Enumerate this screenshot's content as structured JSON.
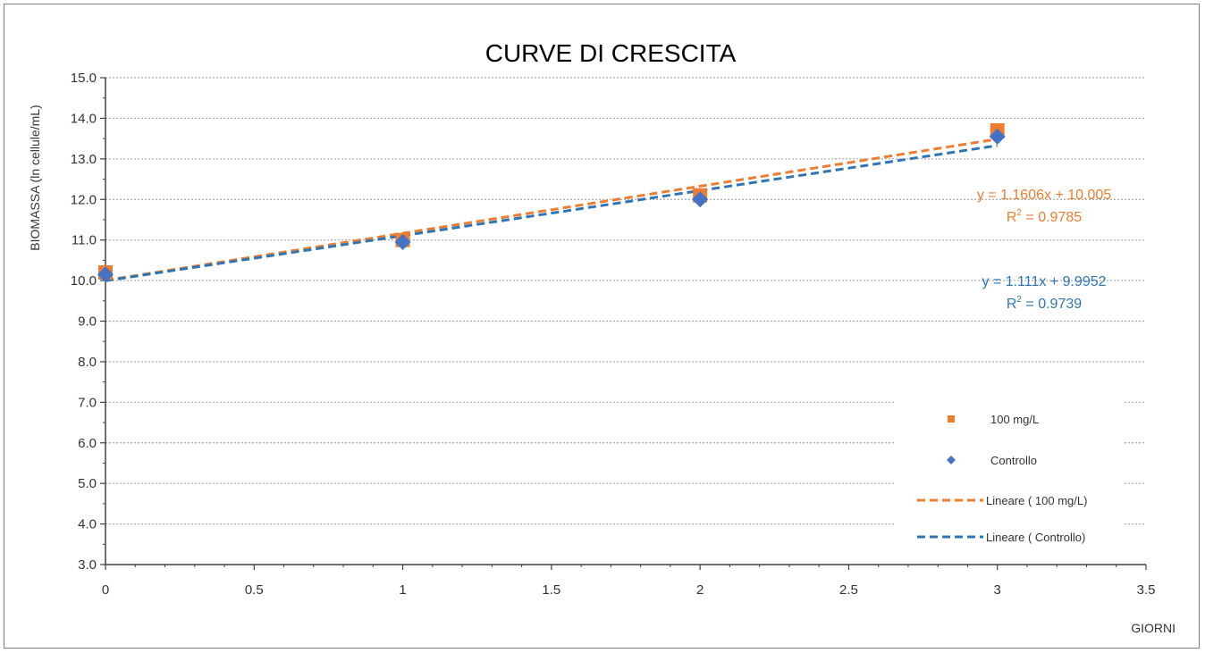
{
  "chart_data": {
    "type": "scatter",
    "title": "CURVE DI CRESCITA",
    "xlabel": "GIORNI",
    "ylabel": "BIOMASSA (ln  cellule/mL)",
    "xlim": [
      0,
      3.5
    ],
    "ylim": [
      3.0,
      15.0
    ],
    "x_ticks": [
      "0",
      "0.5",
      "1",
      "1.5",
      "2",
      "2.5",
      "3",
      "3.5"
    ],
    "x_tick_values": [
      0,
      0.5,
      1,
      1.5,
      2,
      2.5,
      3,
      3.5
    ],
    "y_ticks": [
      "3.0",
      "4.0",
      "5.0",
      "6.0",
      "7.0",
      "8.0",
      "9.0",
      "10.0",
      "11.0",
      "12.0",
      "13.0",
      "14.0",
      "15.0"
    ],
    "y_tick_values": [
      3,
      4,
      5,
      6,
      7,
      8,
      9,
      10,
      11,
      12,
      13,
      14,
      15
    ],
    "grid": "horizontal-dotted",
    "legend_position": "bottom-right",
    "series": [
      {
        "name": "100 mg/L",
        "marker": "square",
        "color": "#ED7D31",
        "x": [
          0,
          1,
          2,
          3
        ],
        "y": [
          10.2,
          11.0,
          12.1,
          13.7
        ]
      },
      {
        "name": "Controllo",
        "marker": "diamond",
        "color": "#4472C4",
        "x": [
          0,
          1,
          2,
          3
        ],
        "y": [
          10.15,
          10.95,
          12.0,
          13.55
        ]
      }
    ],
    "trendlines": [
      {
        "name": "Lineare ( 100 mg/L)",
        "type": "linear",
        "color": "#ED7D31",
        "slope": 1.1606,
        "intercept": 10.005,
        "x_range": [
          0,
          3
        ],
        "equation": "y = 1.1606x + 10.005",
        "r2_prefix": "R",
        "r2_sup": "2",
        "r2_value": " = 0.9785"
      },
      {
        "name": "Lineare ( Controllo)",
        "type": "linear",
        "color": "#2E75B6",
        "slope": 1.111,
        "intercept": 9.9952,
        "x_range": [
          0,
          3
        ],
        "equation": "y = 1.111x + 9.9952",
        "r2_prefix": "R",
        "r2_sup": "2",
        "r2_value": " = 0.9739"
      }
    ]
  }
}
